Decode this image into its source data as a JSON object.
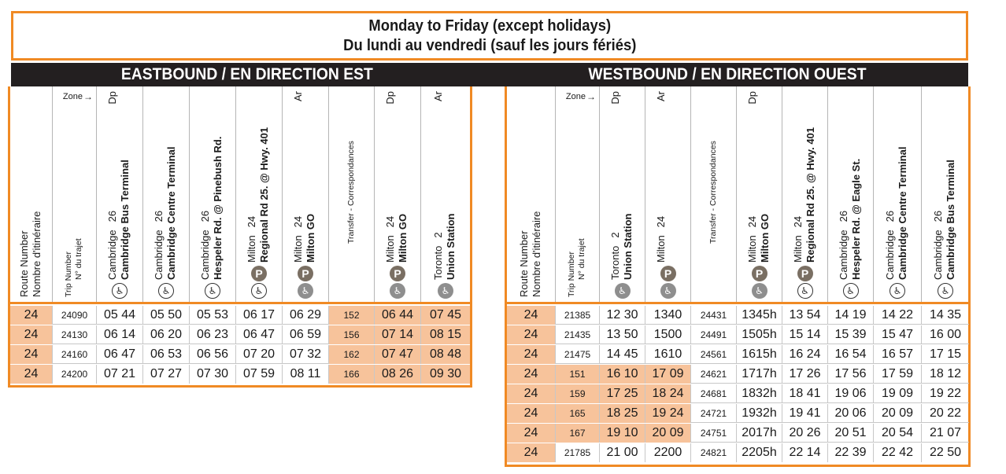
{
  "title": {
    "line1": "Monday to Friday (except holidays)",
    "line2": "Du lundi au vendredi (sauf les jours fériés)"
  },
  "eastbound": {
    "heading": "EASTBOUND / EN DIRECTION EST",
    "headers": {
      "route": {
        "en": "Route Number",
        "fr": "Nombre d'itinéraire"
      },
      "trip": {
        "zone_label": "Zone",
        "en": "Trip Number",
        "fr": "N° du trajet"
      },
      "stops": [
        {
          "city": "Cambridge",
          "zone": "26",
          "flag": "Dp",
          "name": "Cambridge Bus Terminal",
          "icons": [
            "accessible-outline"
          ]
        },
        {
          "city": "Cambridge",
          "zone": "26",
          "flag": "",
          "name": "Cambridge Centre Terminal",
          "icons": [
            "accessible-outline"
          ]
        },
        {
          "city": "Cambridge",
          "zone": "26",
          "flag": "",
          "name": "Hespeler Rd. @ Pinebush Rd.",
          "icons": [
            "accessible-outline"
          ]
        },
        {
          "city": "Milton",
          "zone": "24",
          "flag": "",
          "name": "Regional Rd 25. @ Hwy. 401",
          "icons": [
            "parking",
            "accessible-outline"
          ]
        },
        {
          "city": "Milton",
          "zone": "24",
          "flag": "Ar",
          "name": "Milton GO",
          "icons": [
            "parking",
            "accessible-fill"
          ]
        },
        {
          "city": "",
          "zone": "",
          "flag": "",
          "name": "Transfer - Correspondances",
          "icons": [],
          "transfer": true
        },
        {
          "city": "Milton",
          "zone": "24",
          "flag": "Dp",
          "name": "Milton GO",
          "icons": [
            "parking",
            "accessible-fill"
          ]
        },
        {
          "city": "Toronto",
          "zone": "2",
          "flag": "Ar",
          "name": "Union Station",
          "icons": [
            "accessible-fill"
          ]
        }
      ]
    },
    "rows": [
      {
        "route": "24",
        "trip": "24090",
        "times": [
          "05 44",
          "05 50",
          "05 53",
          "06 17",
          "06 29"
        ],
        "transfer": "152",
        "after": [
          "06 44",
          "07 45"
        ]
      },
      {
        "route": "24",
        "trip": "24130",
        "times": [
          "06 14",
          "06 20",
          "06 23",
          "06 47",
          "06 59"
        ],
        "transfer": "156",
        "after": [
          "07 14",
          "08 15"
        ]
      },
      {
        "route": "24",
        "trip": "24160",
        "times": [
          "06 47",
          "06 53",
          "06 56",
          "07 20",
          "07 32"
        ],
        "transfer": "162",
        "after": [
          "07 47",
          "08 48"
        ]
      },
      {
        "route": "24",
        "trip": "24200",
        "times": [
          "07 21",
          "07 27",
          "07 30",
          "07 59",
          "08 11"
        ],
        "transfer": "166",
        "after": [
          "08 26",
          "09 30"
        ]
      }
    ]
  },
  "westbound": {
    "heading": "WESTBOUND / EN DIRECTION OUEST",
    "headers": {
      "route": {
        "en": "Route Number",
        "fr": "Nombre d'itinéraire"
      },
      "trip": {
        "zone_label": "Zone",
        "en": "Trip Number",
        "fr": "N° du trajet"
      },
      "stops": [
        {
          "city": "Toronto",
          "zone": "2",
          "flag": "Dp",
          "name": "Union Station",
          "icons": [
            "accessible-fill"
          ]
        },
        {
          "city": "Milton",
          "zone": "24",
          "flag": "Ar",
          "name": "",
          "icons": [
            "parking",
            "accessible-fill"
          ]
        },
        {
          "city": "",
          "zone": "",
          "flag": "",
          "name": "Transfer - Correspondances",
          "icons": [],
          "transfer": true
        },
        {
          "city": "Milton",
          "zone": "24",
          "flag": "Dp",
          "name": "Milton GO",
          "icons": [
            "parking",
            "accessible-fill"
          ]
        },
        {
          "city": "Milton",
          "zone": "24",
          "flag": "",
          "name": "Regional Rd 25. @ Hwy. 401",
          "icons": [
            "parking",
            "accessible-outline"
          ]
        },
        {
          "city": "Cambridge",
          "zone": "26",
          "flag": "",
          "name": "Hespeler Rd. @ Eagle St.",
          "icons": [
            "accessible-outline"
          ]
        },
        {
          "city": "Cambridge",
          "zone": "26",
          "flag": "",
          "name": "Cambridge Centre Terminal",
          "icons": [
            "accessible-outline"
          ]
        },
        {
          "city": "Cambridge",
          "zone": "26",
          "flag": "",
          "name": "Cambridge Bus Terminal",
          "icons": [
            "accessible-outline"
          ]
        }
      ]
    },
    "rows": [
      {
        "route": "24",
        "trip": "21385",
        "pre": [
          "12 30",
          "1340"
        ],
        "transfer": "24431",
        "times": [
          "1345h",
          "13 54",
          "14 19",
          "14 22",
          "14 35"
        ],
        "highlight": false
      },
      {
        "route": "24",
        "trip": "21435",
        "pre": [
          "13 50",
          "1500"
        ],
        "transfer": "24491",
        "times": [
          "1505h",
          "15 14",
          "15 39",
          "15 47",
          "16 00"
        ],
        "highlight": false
      },
      {
        "route": "24",
        "trip": "21475",
        "pre": [
          "14 45",
          "1610"
        ],
        "transfer": "24561",
        "times": [
          "1615h",
          "16 24",
          "16 54",
          "16 57",
          "17 15"
        ],
        "highlight": false
      },
      {
        "route": "24",
        "trip": "151",
        "pre": [
          "16 10",
          "17 09"
        ],
        "transfer": "24621",
        "times": [
          "1717h",
          "17 26",
          "17 56",
          "17 59",
          "18 12"
        ],
        "highlight": true
      },
      {
        "route": "24",
        "trip": "159",
        "pre": [
          "17 25",
          "18 24"
        ],
        "transfer": "24681",
        "times": [
          "1832h",
          "18 41",
          "19 06",
          "19 09",
          "19 22"
        ],
        "highlight": true
      },
      {
        "route": "24",
        "trip": "165",
        "pre": [
          "18 25",
          "19 24"
        ],
        "transfer": "24721",
        "times": [
          "1932h",
          "19 41",
          "20 06",
          "20 09",
          "20 22"
        ],
        "highlight": true
      },
      {
        "route": "24",
        "trip": "167",
        "pre": [
          "19 10",
          "20 09"
        ],
        "transfer": "24751",
        "times": [
          "2017h",
          "20 26",
          "20 51",
          "20 54",
          "21 07"
        ],
        "highlight": true
      },
      {
        "route": "24",
        "trip": "21785",
        "pre": [
          "21 00",
          "2200"
        ],
        "transfer": "24821",
        "times": [
          "2205h",
          "22 14",
          "22 39",
          "22 42",
          "22 50"
        ],
        "highlight": false
      }
    ]
  }
}
